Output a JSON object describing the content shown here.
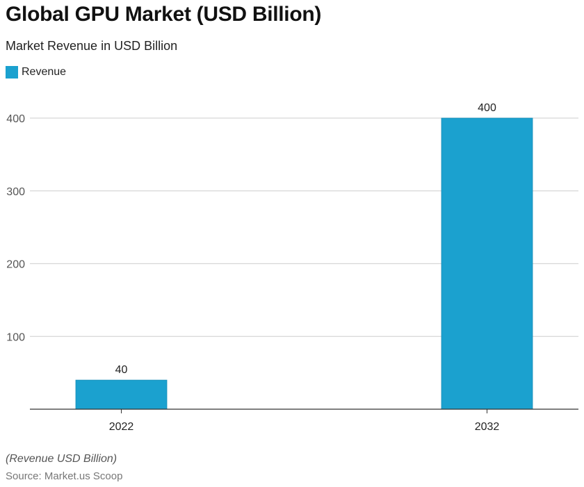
{
  "chart_data": {
    "type": "bar",
    "title": "Global GPU Market (USD Billion)",
    "subtitle": "Market Revenue in USD Billion",
    "categories": [
      "2022",
      "2032"
    ],
    "series": [
      {
        "name": "Revenue",
        "values": [
          40,
          400
        ],
        "color": "#1ba1cf"
      }
    ],
    "ylim": [
      0,
      400
    ],
    "yticks": [
      100,
      200,
      300,
      400
    ],
    "grid": true,
    "legend": "top-left",
    "xlabel": "",
    "ylabel": "",
    "note": "(Revenue USD Billion)",
    "source": "Source: Market.us Scoop"
  }
}
